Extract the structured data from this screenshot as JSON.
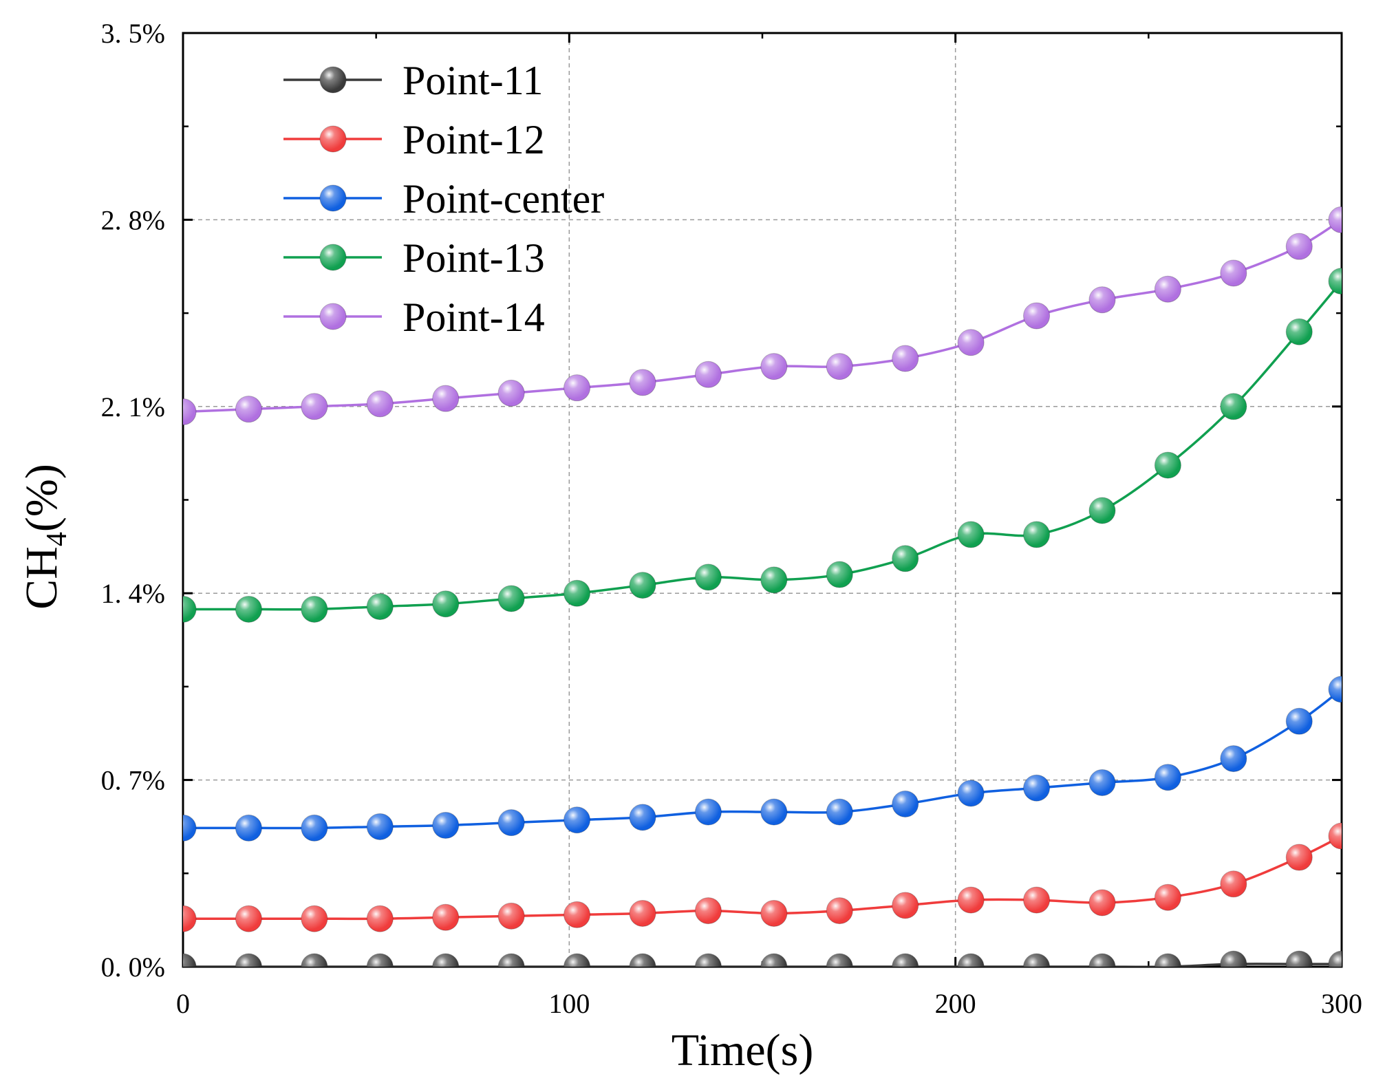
{
  "chart_data": {
    "type": "line",
    "title": "",
    "xlabel": "Time(s)",
    "ylabel": {
      "main": "CH",
      "sub": "4",
      "rest": "(%)"
    },
    "xlim": [
      0,
      300
    ],
    "ylim": [
      0,
      3.5
    ],
    "x_ticks": [
      {
        "value": 0,
        "label": "0"
      },
      {
        "value": 100,
        "label": "100"
      },
      {
        "value": 200,
        "label": "200"
      },
      {
        "value": 300,
        "label": "300"
      }
    ],
    "y_ticks": [
      {
        "value": 0.0,
        "label": "0. 0%"
      },
      {
        "value": 0.7,
        "label": "0. 7%"
      },
      {
        "value": 1.4,
        "label": "1. 4%"
      },
      {
        "value": 2.1,
        "label": "2. 1%"
      },
      {
        "value": 2.8,
        "label": "2. 8%"
      },
      {
        "value": 3.5,
        "label": "3. 5%"
      }
    ],
    "grid": true,
    "legend_position": "top-left",
    "x": [
      0,
      17,
      34,
      51,
      68,
      85,
      102,
      119,
      136,
      153,
      170,
      187,
      204,
      221,
      238,
      255,
      272,
      289,
      300
    ],
    "series": [
      {
        "name": "Point-11",
        "color": "#3a3a3a",
        "values": [
          0.0,
          0.0,
          0.0,
          0.0,
          0.0,
          0.0,
          0.0,
          0.0,
          0.0,
          0.0,
          0.0,
          0.0,
          0.0,
          0.0,
          0.0,
          0.0,
          0.01,
          0.01,
          0.01
        ]
      },
      {
        "name": "Point-12",
        "color": "#f03c3c",
        "values": [
          0.18,
          0.18,
          0.18,
          0.18,
          0.185,
          0.19,
          0.195,
          0.2,
          0.21,
          0.2,
          0.21,
          0.23,
          0.25,
          0.25,
          0.24,
          0.26,
          0.31,
          0.41,
          0.49
        ]
      },
      {
        "name": "Point-center",
        "color": "#1060e0",
        "values": [
          0.52,
          0.52,
          0.52,
          0.525,
          0.53,
          0.54,
          0.55,
          0.56,
          0.58,
          0.58,
          0.58,
          0.61,
          0.65,
          0.67,
          0.69,
          0.71,
          0.78,
          0.92,
          1.04
        ]
      },
      {
        "name": "Point-13",
        "color": "#10a050",
        "values": [
          1.34,
          1.34,
          1.34,
          1.35,
          1.36,
          1.38,
          1.4,
          1.43,
          1.46,
          1.45,
          1.47,
          1.53,
          1.62,
          1.62,
          1.71,
          1.88,
          2.1,
          2.38,
          2.57
        ]
      },
      {
        "name": "Point-14",
        "color": "#b070e0",
        "values": [
          2.08,
          2.09,
          2.1,
          2.11,
          2.13,
          2.15,
          2.17,
          2.19,
          2.22,
          2.25,
          2.25,
          2.28,
          2.34,
          2.44,
          2.5,
          2.54,
          2.6,
          2.7,
          2.8
        ]
      }
    ]
  }
}
